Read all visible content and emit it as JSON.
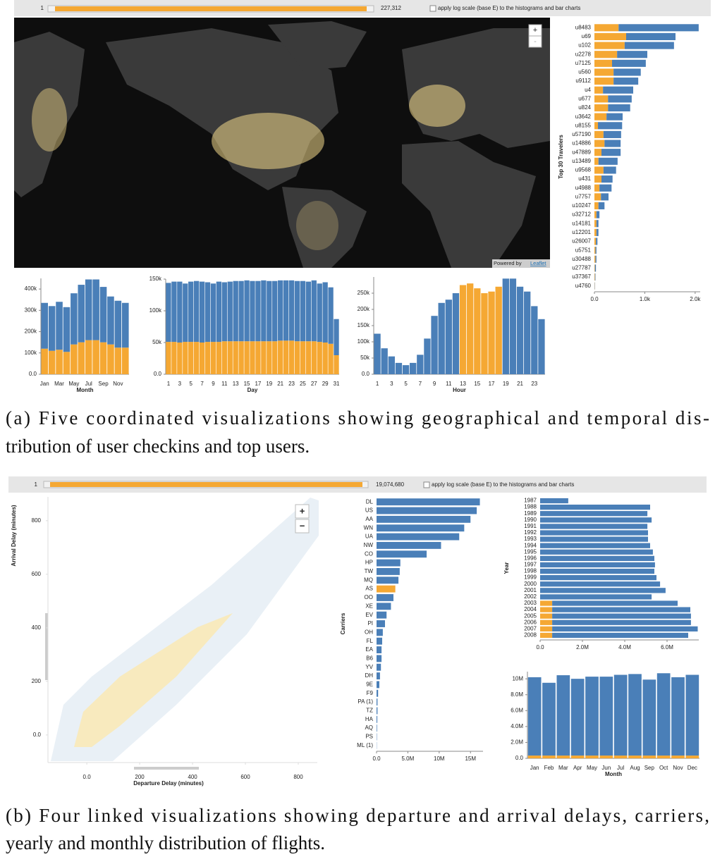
{
  "controls": [
    {
      "min_label": "1",
      "max_label": "227,312",
      "checkbox_label": "apply log scale (base E) to the histograms and bar charts"
    },
    {
      "min_label": "1",
      "max_label": "19,074,680",
      "checkbox_label": "apply log scale (base E) to the histograms and bar charts"
    }
  ],
  "captions": [
    [
      "(a) Five coordinated visualizations showing geographical and temporal dis-",
      "tribution of user checkins and top users."
    ],
    [
      "(b) Four linked visualizations showing departure and arrival delays, carriers,",
      "yearly and monthly distribution of flights."
    ]
  ],
  "chart_data": [
    {
      "type": "map",
      "zoom_in": "+",
      "zoom_out": "-",
      "attribution": "Powered by",
      "attribution_link": "Leaflet"
    },
    {
      "type": "hbar",
      "ylabel": "Top 30 Travelers",
      "categories": [
        "u8483",
        "u69",
        "u102",
        "u2278",
        "u7125",
        "u560",
        "u9112",
        "u4",
        "u677",
        "u824",
        "u3642",
        "u8155",
        "u57190",
        "u14886",
        "u47889",
        "u13489",
        "u9568",
        "u431",
        "u4988",
        "u7757",
        "u10247",
        "u32712",
        "u14181",
        "u12201",
        "u26007",
        "u5751",
        "u30488",
        "u27787",
        "u37367",
        "u4760"
      ],
      "series": [
        {
          "color": "#f5a833",
          "values": [
            480,
            630,
            600,
            450,
            350,
            380,
            380,
            170,
            270,
            270,
            240,
            70,
            180,
            200,
            140,
            80,
            180,
            140,
            100,
            130,
            80,
            40,
            40,
            40,
            30,
            20,
            20,
            10,
            10,
            5
          ]
        },
        {
          "color": "#4a7fb8",
          "values": [
            1590,
            980,
            980,
            600,
            670,
            540,
            490,
            600,
            470,
            440,
            320,
            480,
            350,
            320,
            380,
            380,
            250,
            220,
            240,
            150,
            120,
            60,
            40,
            40,
            30,
            20,
            20,
            20,
            10,
            5
          ]
        }
      ],
      "xlim": [
        0,
        2100
      ],
      "xticks": [
        {
          "value": 0,
          "label": "0.0"
        },
        {
          "value": 1000,
          "label": "1.0k"
        },
        {
          "value": 2000,
          "label": "2.0k"
        }
      ]
    },
    {
      "type": "vbar",
      "xlabel": "Month",
      "categories": [
        "Jan",
        null,
        "Mar",
        null,
        "May",
        null,
        "Jul",
        null,
        "Sep",
        null,
        "Nov",
        null
      ],
      "series": [
        {
          "color": "#f5a833",
          "values": [
            120000,
            110000,
            115000,
            105000,
            140000,
            150000,
            160000,
            160000,
            150000,
            140000,
            125000,
            125000
          ]
        },
        {
          "color": "#4a7fb8",
          "values": [
            215000,
            210000,
            225000,
            210000,
            240000,
            270000,
            285000,
            285000,
            260000,
            225000,
            220000,
            210000
          ]
        }
      ],
      "ylim": [
        0,
        450000
      ],
      "yticks": [
        {
          "value": 0,
          "label": "0.0"
        },
        {
          "value": 100000,
          "label": "100k"
        },
        {
          "value": 200000,
          "label": "200k"
        },
        {
          "value": 300000,
          "label": "300k"
        },
        {
          "value": 400000,
          "label": "400k"
        }
      ]
    },
    {
      "type": "vbar",
      "xlabel": "Day",
      "categories": [
        1,
        null,
        3,
        null,
        5,
        null,
        7,
        null,
        9,
        null,
        11,
        null,
        13,
        null,
        15,
        null,
        17,
        null,
        19,
        null,
        21,
        null,
        23,
        null,
        25,
        null,
        27,
        null,
        29,
        null,
        31
      ],
      "series": [
        {
          "color": "#f5a833",
          "values": [
            51000,
            51000,
            50000,
            51000,
            51000,
            51000,
            50000,
            51000,
            51000,
            51000,
            52000,
            52000,
            52000,
            52000,
            52000,
            52000,
            52000,
            52000,
            52000,
            52000,
            53000,
            53000,
            53000,
            52000,
            52000,
            52000,
            52000,
            51000,
            50000,
            48000,
            30000
          ]
        },
        {
          "color": "#4a7fb8",
          "values": [
            93000,
            95000,
            96000,
            92000,
            95000,
            96000,
            96000,
            94000,
            92000,
            95000,
            93000,
            94000,
            95000,
            95000,
            96000,
            95000,
            95000,
            96000,
            95000,
            95000,
            95000,
            95000,
            95000,
            95000,
            95000,
            94000,
            96000,
            92000,
            95000,
            89000,
            57000
          ]
        }
      ],
      "ylim": [
        0,
        150000
      ],
      "yticks": [
        {
          "value": 0,
          "label": "0.0"
        },
        {
          "value": 50000,
          "label": "50k"
        },
        {
          "value": 100000,
          "label": "100k"
        },
        {
          "value": 150000,
          "label": "150k"
        }
      ]
    },
    {
      "type": "vbar",
      "xlabel": "Hour",
      "categories": [
        1,
        null,
        3,
        null,
        5,
        null,
        7,
        null,
        9,
        null,
        11,
        null,
        13,
        null,
        15,
        null,
        17,
        null,
        19,
        null,
        21,
        null,
        23,
        null
      ],
      "series": [
        {
          "color": "#f5a833",
          "values": [
            0,
            0,
            0,
            0,
            0,
            0,
            0,
            0,
            0,
            0,
            0,
            0,
            275000,
            280000,
            265000,
            250000,
            255000,
            270000,
            0,
            0,
            0,
            0,
            0,
            0
          ]
        },
        {
          "color": "#4a7fb8",
          "values": [
            125000,
            80000,
            55000,
            35000,
            28000,
            35000,
            60000,
            110000,
            180000,
            220000,
            230000,
            250000,
            0,
            0,
            0,
            0,
            0,
            0,
            295000,
            295000,
            270000,
            255000,
            210000,
            170000
          ]
        }
      ],
      "ylim": [
        0,
        300000
      ],
      "yticks": [
        {
          "value": 0,
          "label": "0.0"
        },
        {
          "value": 50000,
          "label": "50k"
        },
        {
          "value": 100000,
          "label": "100k"
        },
        {
          "value": 150000,
          "label": "150k"
        },
        {
          "value": 200000,
          "label": "200k"
        },
        {
          "value": 250000,
          "label": "250k"
        }
      ]
    },
    {
      "type": "density",
      "xlabel": "Departure Delay (minutes)",
      "ylabel": "Arrival Delay (minutes)",
      "zoom_in": "+",
      "zoom_out": "−",
      "xlim": [
        -147,
        872
      ],
      "ylim": [
        -103,
        889
      ],
      "xticks": [
        {
          "value": 0,
          "label": "0.0"
        },
        200,
        400,
        600,
        800
      ],
      "yticks": [
        {
          "value": 0,
          "label": "0.0"
        },
        200,
        400,
        600,
        800
      ]
    },
    {
      "type": "hbar",
      "ylabel": "Carriers",
      "categories": [
        "DL",
        "US",
        "AA",
        "WN",
        "UA",
        "NW",
        "CO",
        "HP",
        "TW",
        "MQ",
        "AS",
        "OO",
        "XE",
        "EV",
        "PI",
        "OH",
        "FL",
        "EA",
        "B6",
        "YV",
        "DH",
        "9E",
        "F9",
        "PA (1)",
        "TZ",
        "HA",
        "AQ",
        "PS",
        "ML (1)"
      ],
      "series": [
        {
          "color": "#f5a833",
          "values": [
            0,
            0,
            0,
            0,
            0,
            0,
            0,
            0,
            0,
            0,
            3000000,
            0,
            0,
            0,
            0,
            0,
            0,
            0,
            0,
            0,
            0,
            0,
            0,
            0,
            0,
            0,
            0,
            0,
            0
          ]
        },
        {
          "color": "#4a7fb8",
          "values": [
            16500000,
            16000000,
            15000000,
            14000000,
            13200000,
            10300000,
            8000000,
            3800000,
            3700000,
            3500000,
            0,
            2700000,
            2300000,
            1600000,
            1350000,
            1000000,
            900000,
            800000,
            800000,
            700000,
            550000,
            450000,
            250000,
            150000,
            150000,
            120000,
            80000,
            50000,
            30000
          ]
        }
      ],
      "xlim": [
        0,
        17000000
      ],
      "xticks": [
        {
          "value": 0,
          "label": "0.0"
        },
        {
          "value": 5000000,
          "label": "5.0M"
        },
        {
          "value": 10000000,
          "label": "10M"
        },
        {
          "value": 15000000,
          "label": "15M"
        }
      ]
    },
    {
      "type": "hbar",
      "ylabel": "Year",
      "categories": [
        1987,
        1988,
        1989,
        1990,
        1991,
        1992,
        1993,
        1994,
        1995,
        1996,
        1997,
        1998,
        1999,
        2000,
        2001,
        2002,
        2003,
        2004,
        2005,
        2006,
        2007,
        2008
      ],
      "series": [
        {
          "color": "#f5a833",
          "values": [
            0,
            0,
            0,
            0,
            0,
            0,
            0,
            0,
            0,
            0,
            0,
            0,
            0,
            0,
            0,
            0,
            570000,
            570000,
            570000,
            570000,
            570000,
            570000
          ]
        },
        {
          "color": "#4a7fb8",
          "values": [
            1330000,
            5200000,
            5070000,
            5270000,
            5070000,
            5100000,
            5100000,
            5200000,
            5330000,
            5400000,
            5430000,
            5400000,
            5500000,
            5670000,
            5930000,
            5270000,
            5930000,
            6530000,
            6560000,
            6560000,
            6880000,
            6430000
          ]
        }
      ],
      "xlim": [
        0,
        7500000
      ],
      "xticks": [
        {
          "value": 0,
          "label": "0.0"
        },
        {
          "value": 2000000,
          "label": "2.0M"
        },
        {
          "value": 4000000,
          "label": "4.0M"
        },
        {
          "value": 6000000,
          "label": "6.0M"
        }
      ]
    },
    {
      "type": "vbar",
      "xlabel": "Month",
      "categories": [
        "Jan",
        "Feb",
        "Mar",
        "Apr",
        "May",
        "Jun",
        "Jul",
        "Aug",
        "Sep",
        "Oct",
        "Nov",
        "Dec"
      ],
      "series": [
        {
          "color": "#f5a833",
          "values": [
            350000,
            350000,
            350000,
            350000,
            350000,
            350000,
            350000,
            350000,
            350000,
            350000,
            350000,
            350000
          ]
        },
        {
          "color": "#4a7fb8",
          "values": [
            9850000,
            9150000,
            10100000,
            9650000,
            9920000,
            9920000,
            10150000,
            10250000,
            9550000,
            10350000,
            9850000,
            10150000
          ]
        }
      ],
      "ylim": [
        0,
        10900000
      ],
      "yticks": [
        {
          "value": 0,
          "label": "0.0"
        },
        {
          "value": 2000000,
          "label": "2.0M"
        },
        {
          "value": 4000000,
          "label": "4.0M"
        },
        {
          "value": 6000000,
          "label": "6.0M"
        },
        {
          "value": 8000000,
          "label": "8.0M"
        },
        {
          "value": 10000000,
          "label": "10M"
        }
      ]
    }
  ]
}
